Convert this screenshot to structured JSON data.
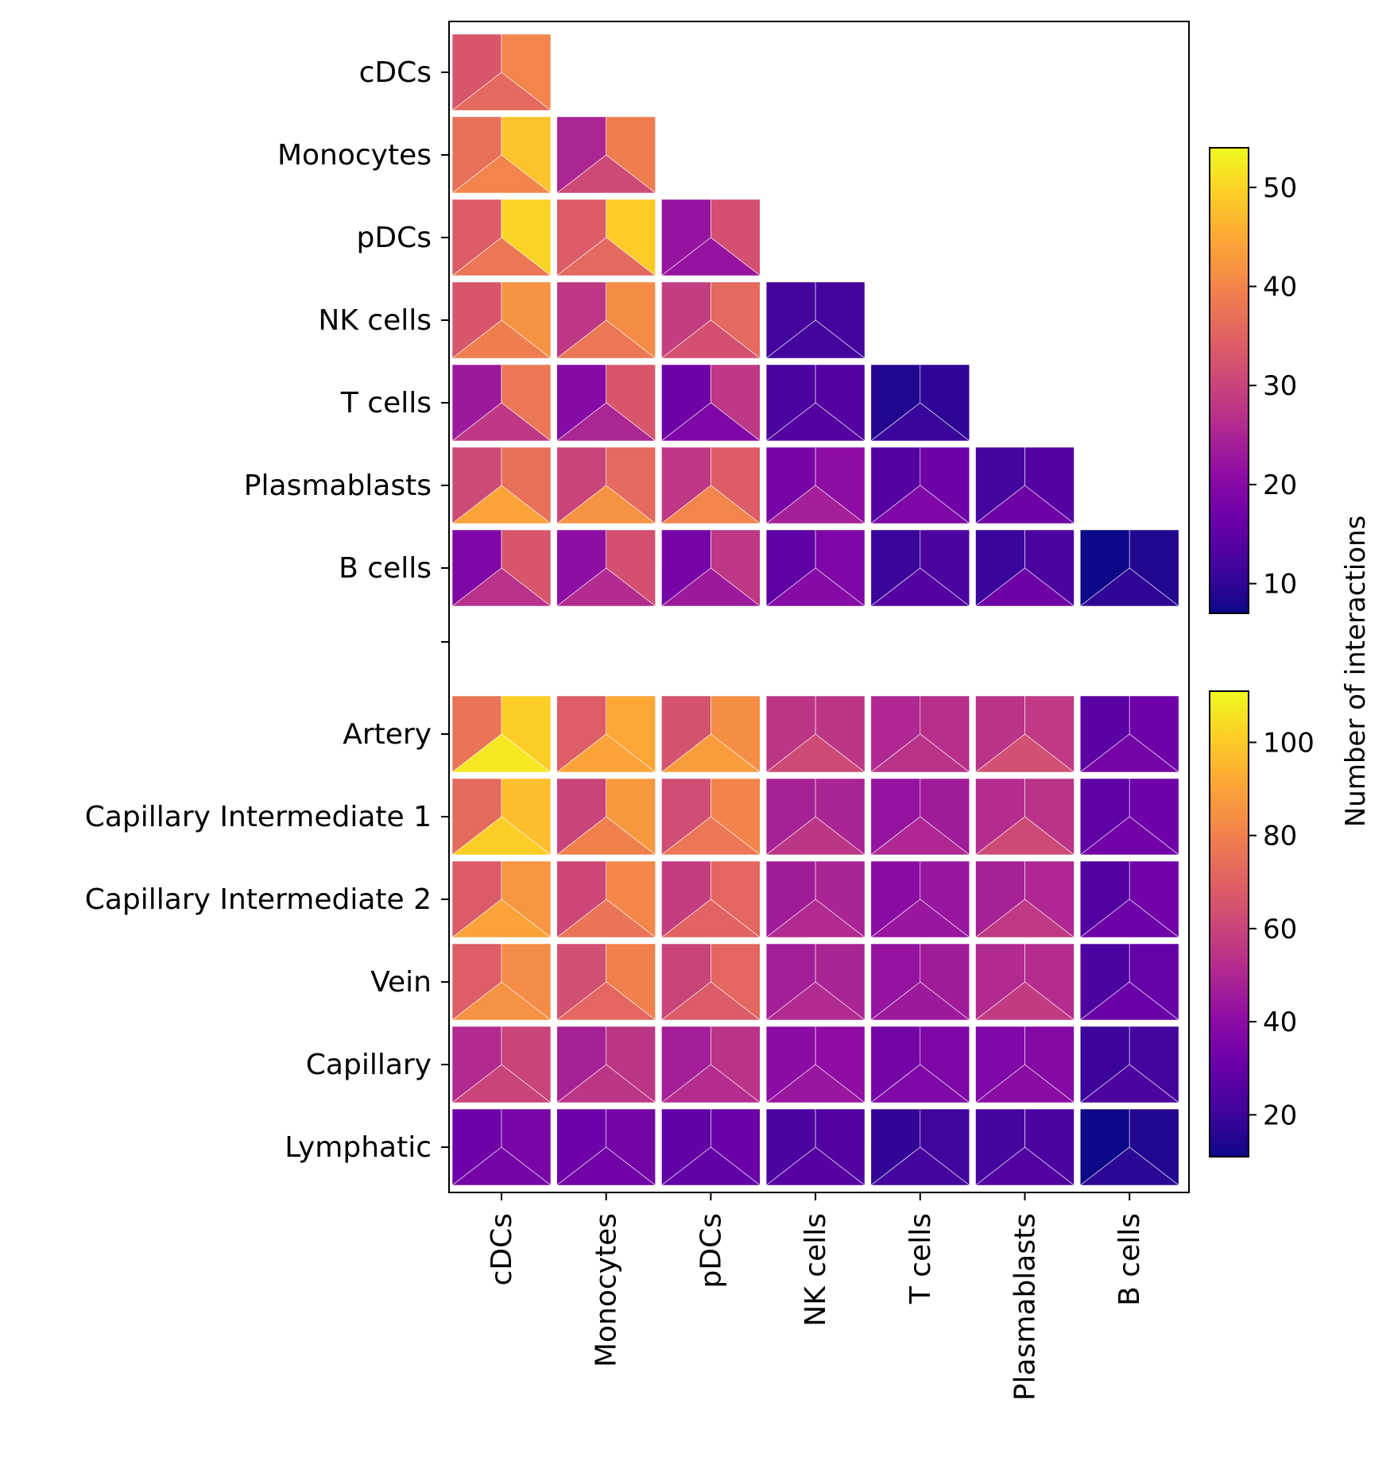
{
  "chart_data": {
    "type": "heatmap",
    "cell_style": "triangulated tiles: each tile shows three interaction values (left panel, right panel, bottom panel)",
    "colormap": "plasma",
    "columns": [
      "cDCs",
      "Monocytes",
      "pDCs",
      "NK cells",
      "T cells",
      "Plasmablasts",
      "B cells"
    ],
    "panels": [
      {
        "rows": [
          "cDCs",
          "Monocytes",
          "pDCs",
          "NK cells",
          "T cells",
          "Plasmablasts",
          "B cells"
        ],
        "lower_triangle_only": true,
        "colorbar": {
          "label": "Number of interactions",
          "range": [
            7,
            54
          ],
          "ticks": [
            10,
            20,
            30,
            40,
            50
          ]
        },
        "values": [
          [
            [
              33,
              40,
              36
            ]
          ],
          [
            [
              37,
              48,
              40
            ],
            [
              25,
              39,
              31
            ]
          ],
          [
            [
              34,
              50,
              38
            ],
            [
              34,
              49,
              36
            ],
            [
              22,
              32,
              22
            ]
          ],
          [
            [
              33,
              42,
              39
            ],
            [
              28,
              41,
              38
            ],
            [
              29,
              36,
              32
            ],
            [
              12,
              12,
              12
            ]
          ],
          [
            [
              23,
              38,
              28
            ],
            [
              20,
              33,
              25
            ],
            [
              17,
              28,
              19
            ],
            [
              13,
              14,
              14
            ],
            [
              9,
              10,
              11
            ]
          ],
          [
            [
              31,
              37,
              44
            ],
            [
              30,
              36,
              42
            ],
            [
              28,
              34,
              40
            ],
            [
              18,
              21,
              24
            ],
            [
              14,
              17,
              19
            ],
            [
              12,
              14,
              17
            ]
          ],
          [
            [
              19,
              33,
              27
            ],
            [
              21,
              32,
              26
            ],
            [
              18,
              28,
              23
            ],
            [
              15,
              19,
              20
            ],
            [
              11,
              13,
              14
            ],
            [
              11,
              13,
              17
            ],
            [
              7,
              9,
              10
            ]
          ]
        ]
      },
      {
        "rows": [
          "Artery",
          "Capillary Intermediate 1",
          "Capillary Intermediate 2",
          "Vein",
          "Capillary",
          "Lymphatic"
        ],
        "lower_triangle_only": false,
        "colorbar": {
          "label": "",
          "range": [
            11,
            111
          ],
          "ticks": [
            20,
            40,
            60,
            80,
            100
          ]
        },
        "values": [
          [
            [
              76,
              101,
              107
            ],
            [
              69,
              91,
              90
            ],
            [
              65,
              84,
              88
            ],
            [
              55,
              55,
              62
            ],
            [
              50,
              53,
              54
            ],
            [
              54,
              56,
              64
            ],
            [
              27,
              32,
              34
            ]
          ],
          [
            [
              73,
              97,
              101
            ],
            [
              60,
              87,
              80
            ],
            [
              63,
              81,
              77
            ],
            [
              48,
              49,
              55
            ],
            [
              43,
              46,
              50
            ],
            [
              52,
              54,
              62
            ],
            [
              28,
              32,
              33
            ]
          ],
          [
            [
              68,
              86,
              90
            ],
            [
              61,
              82,
              76
            ],
            [
              58,
              72,
              71
            ],
            [
              46,
              49,
              51
            ],
            [
              40,
              44,
              44
            ],
            [
              48,
              50,
              56
            ],
            [
              25,
              33,
              32
            ]
          ],
          [
            [
              69,
              83,
              85
            ],
            [
              64,
              80,
              72
            ],
            [
              60,
              72,
              68
            ],
            [
              47,
              49,
              51
            ],
            [
              43,
              46,
              45
            ],
            [
              51,
              52,
              57
            ],
            [
              24,
              30,
              31
            ]
          ],
          [
            [
              51,
              60,
              60
            ],
            [
              48,
              55,
              55
            ],
            [
              47,
              54,
              52
            ],
            [
              40,
              41,
              44
            ],
            [
              34,
              36,
              37
            ],
            [
              37,
              38,
              40
            ],
            [
              20,
              22,
              24
            ]
          ],
          [
            [
              32,
              35,
              34
            ],
            [
              32,
              34,
              33
            ],
            [
              29,
              31,
              29
            ],
            [
              24,
              25,
              26
            ],
            [
              18,
              21,
              22
            ],
            [
              22,
              24,
              25
            ],
            [
              11,
              15,
              17
            ]
          ]
        ]
      }
    ]
  }
}
